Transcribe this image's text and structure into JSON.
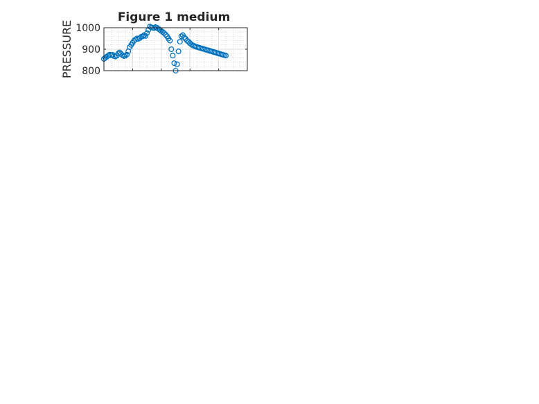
{
  "figure": {
    "title": "Figure 1 medium"
  },
  "colors": {
    "marker": "#0072BD",
    "axis": "#262626",
    "grid": "#dcdcdc",
    "minor_grid": "#c8c8c8"
  },
  "chart_data": [
    {
      "type": "scatter",
      "name": "pressure",
      "title": "Figure 1 medium",
      "ylabel_main": "PRESSURE",
      "ylabel_sub": "",
      "ylabel_tail": "",
      "ylim": [
        800,
        1000
      ],
      "yticks": [
        800,
        900,
        1000
      ],
      "ytick_labels": [
        "800",
        "900",
        "1000"
      ],
      "xlim": [
        0,
        5
      ],
      "show_xticklabels": false,
      "grid": "on",
      "x": [
        0.0,
        0.05,
        0.1,
        0.15,
        0.2,
        0.25,
        0.3,
        0.35,
        0.4,
        0.45,
        0.5,
        0.55,
        0.6,
        0.65,
        0.7,
        0.75,
        0.8,
        0.85,
        0.9,
        0.95,
        1.0,
        1.05,
        1.1,
        1.15,
        1.2,
        1.25,
        1.3,
        1.35,
        1.4,
        1.45,
        1.5,
        1.55,
        1.6,
        1.65,
        1.7,
        1.75,
        1.8,
        1.85,
        1.9,
        1.95,
        2.0,
        2.05,
        2.1,
        2.15,
        2.2,
        2.25,
        2.3,
        2.35,
        2.4,
        2.45,
        2.5,
        2.55,
        2.6,
        2.65,
        2.7,
        2.75,
        2.8,
        2.85,
        2.9,
        2.95,
        3.0,
        3.05,
        3.1,
        3.15,
        3.2,
        3.25,
        3.3,
        3.35,
        3.4,
        3.45,
        3.5,
        3.55,
        3.6,
        3.65,
        3.7,
        3.75,
        3.8,
        3.85,
        3.9,
        3.95,
        4.0,
        4.05,
        4.1,
        4.15,
        4.2,
        4.25
      ],
      "y": [
        855,
        860,
        865,
        870,
        875,
        872,
        874,
        868,
        866,
        870,
        880,
        885,
        878,
        872,
        868,
        870,
        875,
        890,
        910,
        920,
        930,
        940,
        945,
        950,
        948,
        952,
        958,
        960,
        965,
        962,
        975,
        990,
        1005,
        1002,
        1000,
        998,
        1003,
        1000,
        995,
        990,
        985,
        980,
        975,
        968,
        960,
        950,
        940,
        900,
        870,
        835,
        800,
        830,
        890,
        935,
        960,
        965,
        955,
        948,
        940,
        935,
        928,
        922,
        918,
        915,
        912,
        910,
        908,
        906,
        904,
        902,
        900,
        898,
        896,
        894,
        892,
        890,
        888,
        886,
        884,
        882,
        880,
        878,
        876,
        874,
        872,
        870
      ],
      "_note": ""
    }
  ]
}
